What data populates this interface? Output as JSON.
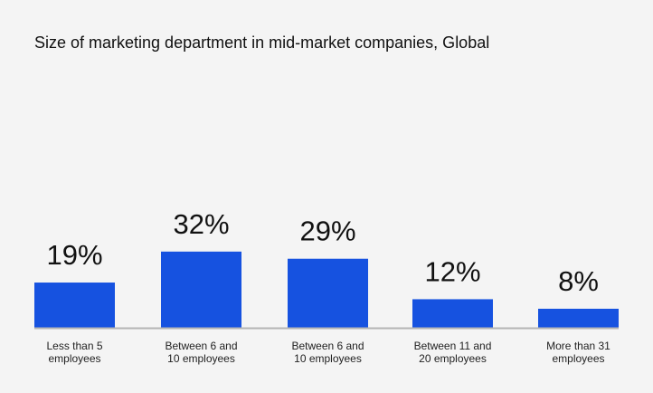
{
  "chart_data": {
    "type": "bar",
    "title": "Size of marketing department in mid-market companies, Global",
    "categories": [
      [
        "Less than 5",
        "employees"
      ],
      [
        "Between 6 and",
        "10 employees"
      ],
      [
        "Between 6 and",
        "10 employees"
      ],
      [
        "Between 11 and",
        "20 employees"
      ],
      [
        "More than 31",
        "employees"
      ]
    ],
    "values": [
      19,
      32,
      29,
      12,
      8
    ],
    "data_labels": [
      "19%",
      "32%",
      "29%",
      "12%",
      "8%"
    ],
    "xlabel": "",
    "ylabel": "",
    "ylim": [
      0,
      100
    ],
    "grid": false,
    "bar_color": "#1652e0",
    "baseline_color": "#b5b5b5"
  }
}
